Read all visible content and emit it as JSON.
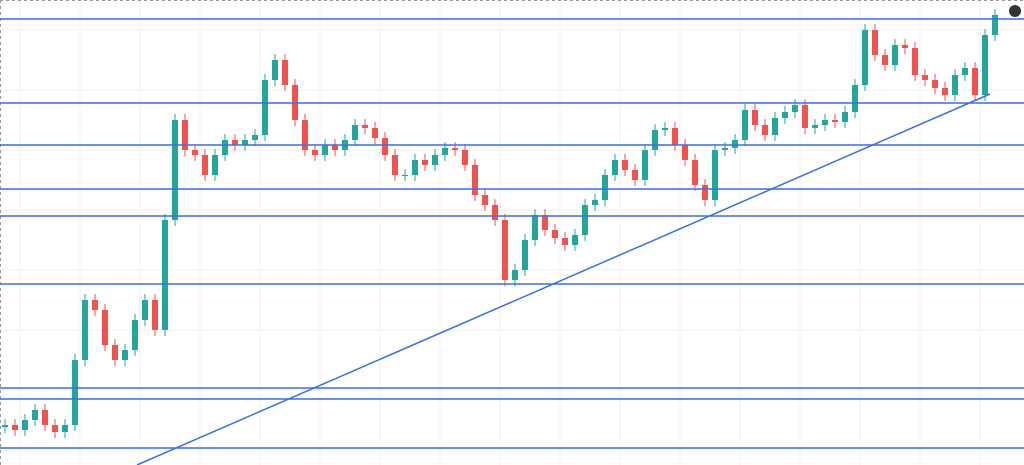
{
  "chart_data": {
    "type": "candlestick",
    "xlim": [
      -0.5,
      101.9
    ],
    "ylim": [
      0,
      465
    ],
    "grid": true,
    "up_color": "#26a69a",
    "down_color": "#ef5350",
    "open": [
      38,
      40,
      35,
      45,
      55,
      40,
      33,
      40,
      105,
      165,
      155,
      120,
      105,
      115,
      145,
      165,
      135,
      245,
      345,
      315,
      310,
      290,
      310,
      325,
      320,
      325,
      330,
      385,
      405,
      380,
      345,
      315,
      310,
      320,
      315,
      325,
      340,
      337,
      327,
      310,
      290,
      290,
      305,
      300,
      310,
      317,
      315,
      300,
      270,
      260,
      245,
      185,
      195,
      225,
      250,
      235,
      227,
      220,
      230,
      260,
      265,
      290,
      305,
      295,
      285,
      315,
      335,
      337,
      320,
      305,
      280,
      265,
      315,
      317,
      325,
      355,
      340,
      330,
      347,
      353,
      360,
      337,
      340,
      345,
      343,
      353,
      380,
      435,
      410,
      400,
      420,
      417,
      390,
      385,
      377,
      370,
      390,
      397,
      370,
      430
    ],
    "high": [
      46,
      46,
      51,
      61,
      61,
      46,
      46,
      111,
      171,
      171,
      161,
      126,
      121,
      151,
      171,
      171,
      251,
      351,
      351,
      321,
      316,
      316,
      331,
      331,
      331,
      336,
      391,
      411,
      411,
      386,
      351,
      321,
      326,
      326,
      331,
      346,
      346,
      343,
      333,
      316,
      296,
      311,
      311,
      316,
      323,
      323,
      321,
      306,
      276,
      266,
      251,
      201,
      231,
      256,
      256,
      241,
      233,
      236,
      266,
      271,
      296,
      311,
      311,
      301,
      321,
      341,
      343,
      343,
      326,
      311,
      286,
      321,
      323,
      331,
      361,
      361,
      346,
      353,
      359,
      366,
      366,
      346,
      351,
      351,
      359,
      386,
      441,
      441,
      416,
      426,
      426,
      423,
      396,
      391,
      383,
      396,
      403,
      403,
      436,
      456
    ],
    "low": [
      32,
      29,
      29,
      39,
      34,
      27,
      27,
      34,
      99,
      149,
      114,
      99,
      99,
      109,
      139,
      129,
      129,
      239,
      309,
      304,
      284,
      284,
      304,
      314,
      314,
      319,
      324,
      379,
      374,
      339,
      309,
      304,
      304,
      309,
      309,
      319,
      331,
      321,
      304,
      284,
      284,
      284,
      294,
      294,
      304,
      309,
      294,
      264,
      254,
      239,
      179,
      179,
      189,
      219,
      229,
      221,
      214,
      214,
      224,
      254,
      259,
      284,
      289,
      279,
      279,
      309,
      329,
      314,
      299,
      274,
      259,
      259,
      309,
      311,
      319,
      334,
      324,
      324,
      341,
      347,
      331,
      331,
      334,
      337,
      337,
      347,
      374,
      404,
      394,
      394,
      411,
      384,
      379,
      371,
      364,
      364,
      384,
      364,
      364,
      424
    ],
    "close": [
      40,
      35,
      45,
      55,
      40,
      33,
      40,
      105,
      165,
      155,
      120,
      105,
      115,
      145,
      165,
      135,
      245,
      345,
      315,
      310,
      290,
      310,
      325,
      320,
      325,
      330,
      385,
      405,
      380,
      345,
      315,
      310,
      320,
      315,
      325,
      340,
      337,
      327,
      310,
      290,
      290,
      305,
      300,
      310,
      317,
      315,
      300,
      270,
      260,
      245,
      185,
      195,
      225,
      250,
      235,
      227,
      220,
      230,
      260,
      265,
      290,
      305,
      295,
      285,
      315,
      335,
      337,
      320,
      305,
      280,
      265,
      315,
      317,
      325,
      355,
      340,
      330,
      347,
      353,
      360,
      337,
      340,
      345,
      343,
      353,
      380,
      435,
      410,
      400,
      420,
      417,
      390,
      385,
      377,
      370,
      390,
      397,
      370,
      430,
      450
    ],
    "level_color": "#3b6fe0",
    "levels": [
      446,
      362,
      320,
      276,
      249,
      181,
      77,
      66,
      17
    ],
    "trendline": {
      "x": [
        13.2,
        98.5
      ],
      "y": [
        0,
        371
      ]
    }
  }
}
